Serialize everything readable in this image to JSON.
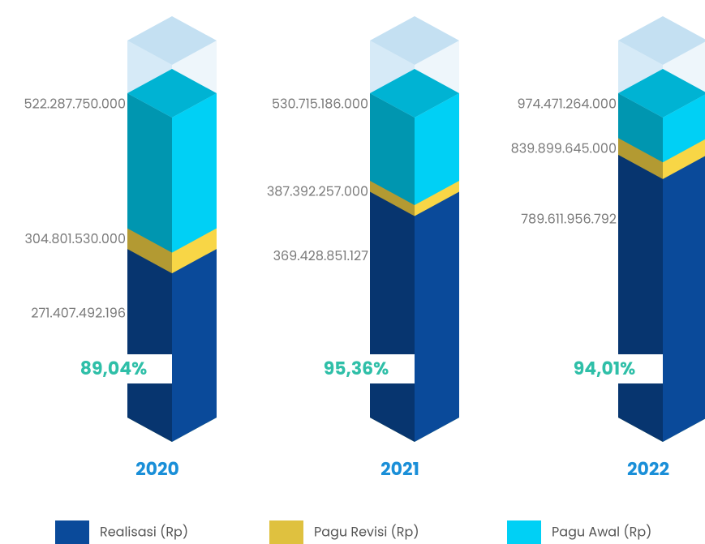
{
  "chart_data": {
    "type": "bar",
    "categories": [
      "2020",
      "2021",
      "2022"
    ],
    "series": [
      {
        "name": "Pagu Awal (Rp)",
        "color": "#00d0f5",
        "values": [
          522287750000,
          530715186000,
          974471264000
        ],
        "value_labels": [
          "522.287.750.000",
          "530.715.186.000",
          "974.471.264.000"
        ]
      },
      {
        "name": "Pagu Revisi (Rp)",
        "color": "#f8d646",
        "values": [
          304801530000,
          387392257000,
          839899645000
        ],
        "value_labels": [
          "304.801.530.000",
          "387.392.257.000",
          "839.899.645.000"
        ]
      },
      {
        "name": "Realisasi (Rp)",
        "color": "#0a4a9a",
        "values": [
          271407492196,
          369428851127,
          789611956792
        ],
        "value_labels": [
          "271.407.492.196",
          "369.428.851.127",
          "789.611.956.792"
        ]
      }
    ],
    "percentages": {
      "values": [
        89.04,
        95.36,
        94.01
      ],
      "value_labels": [
        "89,04%",
        "95,36%",
        "94,01%"
      ]
    }
  }
}
